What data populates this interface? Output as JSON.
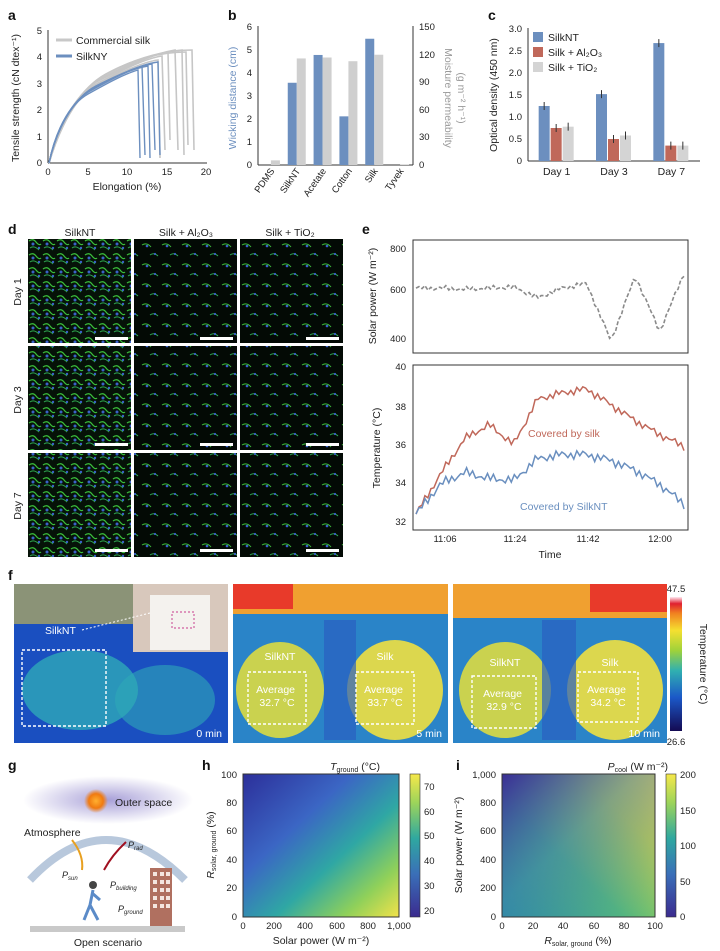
{
  "panels": {
    "a": {
      "letter": "a",
      "ylabel": "Tensile strength (cN dtex⁻¹)",
      "xlabel": "Elongation (%)",
      "xticks": [
        "0",
        "5",
        "10",
        "15",
        "20"
      ],
      "yticks": [
        "0",
        "1",
        "2",
        "3",
        "4",
        "5"
      ],
      "legend": [
        "Commercial silk",
        "SilkNY"
      ],
      "colors": {
        "commercial": "#c8c8c8",
        "silkny": "#6c8fbf"
      }
    },
    "b": {
      "letter": "b",
      "ylabel_left": "Wicking distance (cm)",
      "ylabel_right": "Moisture permeability",
      "ylabel_right_units": "(g m⁻² h⁻¹)",
      "yticks_left": [
        "0",
        "1",
        "2",
        "3",
        "4",
        "5",
        "6"
      ],
      "yticks_right": [
        "0",
        "30",
        "60",
        "90",
        "120",
        "150"
      ]
    },
    "c": {
      "letter": "c",
      "ylabel": "Optical density (450 nm)",
      "yticks": [
        "0",
        "0.5",
        "1.0",
        "1.5",
        "2.0",
        "2.5",
        "3.0"
      ],
      "legend": [
        "SilkNT",
        "Silk + Al₂O₃",
        "Silk + TiO₂"
      ]
    },
    "d": {
      "letter": "d",
      "col_headers": [
        "SilkNT",
        "Silk + Al₂O₃",
        "Silk + TiO₂"
      ],
      "row_headers": [
        "Day 1",
        "Day 3",
        "Day 7"
      ]
    },
    "e": {
      "letter": "e",
      "top_ylabel": "Solar power (W m⁻²)",
      "top_yticks": [
        "400",
        "600",
        "800"
      ],
      "bottom_ylabel": "Temperature (°C)",
      "bottom_yticks": [
        "32",
        "34",
        "36",
        "38",
        "40"
      ],
      "xticks": [
        "11:06",
        "11:24",
        "11:42",
        "12:00"
      ],
      "xlabel": "Time",
      "label_silk": "Covered by silk",
      "label_silknt": "Covered by SilkNT",
      "colors": {
        "silk": "#c0685a",
        "silknt": "#6a8fbf",
        "solar": "#8a8a8a"
      }
    },
    "f": {
      "letter": "f",
      "silknt_label": "SilkNT",
      "frames": [
        {
          "time": "0 min"
        },
        {
          "time": "5 min",
          "left_name": "SilkNT",
          "right_name": "Silk",
          "left_avg": "Average\n32.7 °C",
          "right_avg": "Average\n33.7 °C"
        },
        {
          "time": "10 min",
          "left_name": "SilkNT",
          "right_name": "Silk",
          "left_avg": "Average\n32.9 °C",
          "right_avg": "Average\n34.2 °C"
        }
      ],
      "colorbar_max": "47.5",
      "colorbar_min": "26.6",
      "colorbar_label": "Temperature (°C)"
    },
    "g": {
      "letter": "g",
      "outer_space": "Outer space",
      "atmosphere": "Atmosphere",
      "p_sun": "P",
      "p_sun_sub": "sun",
      "p_rad": "P",
      "p_rad_sub": "rad",
      "p_building": "P",
      "p_building_sub": "building",
      "p_ground": "P",
      "p_ground_sub": "ground",
      "caption": "Open scenario"
    },
    "h": {
      "letter": "h",
      "title_sym": "T",
      "title_sub": "ground",
      "title_unit": " (°C)",
      "ylabel": "R",
      "ylabel_sub": "solar, ground",
      "ylabel_unit": " (%)",
      "xlabel": "Solar power (W m⁻²)",
      "xticks": [
        "0",
        "200",
        "400",
        "600",
        "800",
        "1,000"
      ],
      "yticks": [
        "0",
        "20",
        "40",
        "60",
        "80",
        "100"
      ],
      "cbar_ticks": [
        "20",
        "30",
        "40",
        "50",
        "60",
        "70"
      ]
    },
    "i": {
      "letter": "i",
      "title_sym": "P",
      "title_sub": "cool",
      "title_unit": " (W m⁻²)",
      "ylabel": "Solar power (W m⁻²)",
      "xlabel": "R",
      "xlabel_sub": "solar, ground",
      "xlabel_unit": " (%)",
      "xticks": [
        "0",
        "20",
        "40",
        "60",
        "80",
        "100"
      ],
      "yticks": [
        "0",
        "200",
        "400",
        "600",
        "800",
        "1,000"
      ],
      "cbar_ticks": [
        "0",
        "50",
        "100",
        "150",
        "200"
      ]
    }
  },
  "chart_data": [
    {
      "panel": "b",
      "type": "bar",
      "categories": [
        "PDMS",
        "SilkNT",
        "Acetate",
        "Cotton",
        "Silk",
        "Tyvek"
      ],
      "series": [
        {
          "name": "Wicking distance",
          "color": "#6c8fbf",
          "values": [
            0,
            3.55,
            4.75,
            2.1,
            5.45,
            0
          ]
        },
        {
          "name": "Moisture permeability",
          "color": "#cfcfcf",
          "values": [
            5,
            115,
            116,
            112,
            119,
            0.5
          ]
        }
      ],
      "ylim_left": [
        0,
        6
      ],
      "ylim_right": [
        0,
        150
      ]
    },
    {
      "panel": "c",
      "type": "bar",
      "categories": [
        "Day 1",
        "Day 3",
        "Day 7"
      ],
      "series": [
        {
          "name": "SilkNT",
          "color": "#6c8fbf",
          "values": [
            1.25,
            1.52,
            2.68
          ]
        },
        {
          "name": "Silk + Al₂O₃",
          "color": "#c0685a",
          "values": [
            0.75,
            0.5,
            0.35
          ]
        },
        {
          "name": "Silk + TiO₂",
          "color": "#d4d4d4",
          "values": [
            0.78,
            0.58,
            0.35
          ]
        }
      ],
      "ylim": [
        0,
        3.0
      ]
    },
    {
      "panel": "e",
      "type": "line",
      "x": [
        "11:03",
        "11:06",
        "11:12",
        "11:18",
        "11:24",
        "11:30",
        "11:36",
        "11:42",
        "11:48",
        "11:54",
        "12:00",
        "12:03"
      ],
      "series": [
        {
          "name": "Solar power",
          "values": [
            600,
            600,
            595,
            600,
            605,
            560,
            600,
            620,
            380,
            650,
            420,
            660
          ]
        },
        {
          "name": "Covered by silk",
          "values": [
            32.5,
            34.5,
            36.3,
            37.0,
            36.0,
            38.3,
            38.6,
            38.8,
            38.0,
            37.2,
            36.5,
            35.9
          ]
        },
        {
          "name": "Covered by SilkNT",
          "values": [
            32.5,
            34.0,
            34.6,
            34.3,
            34.2,
            35.3,
            35.5,
            35.5,
            35.2,
            34.7,
            34.0,
            33.0
          ]
        }
      ]
    }
  ]
}
